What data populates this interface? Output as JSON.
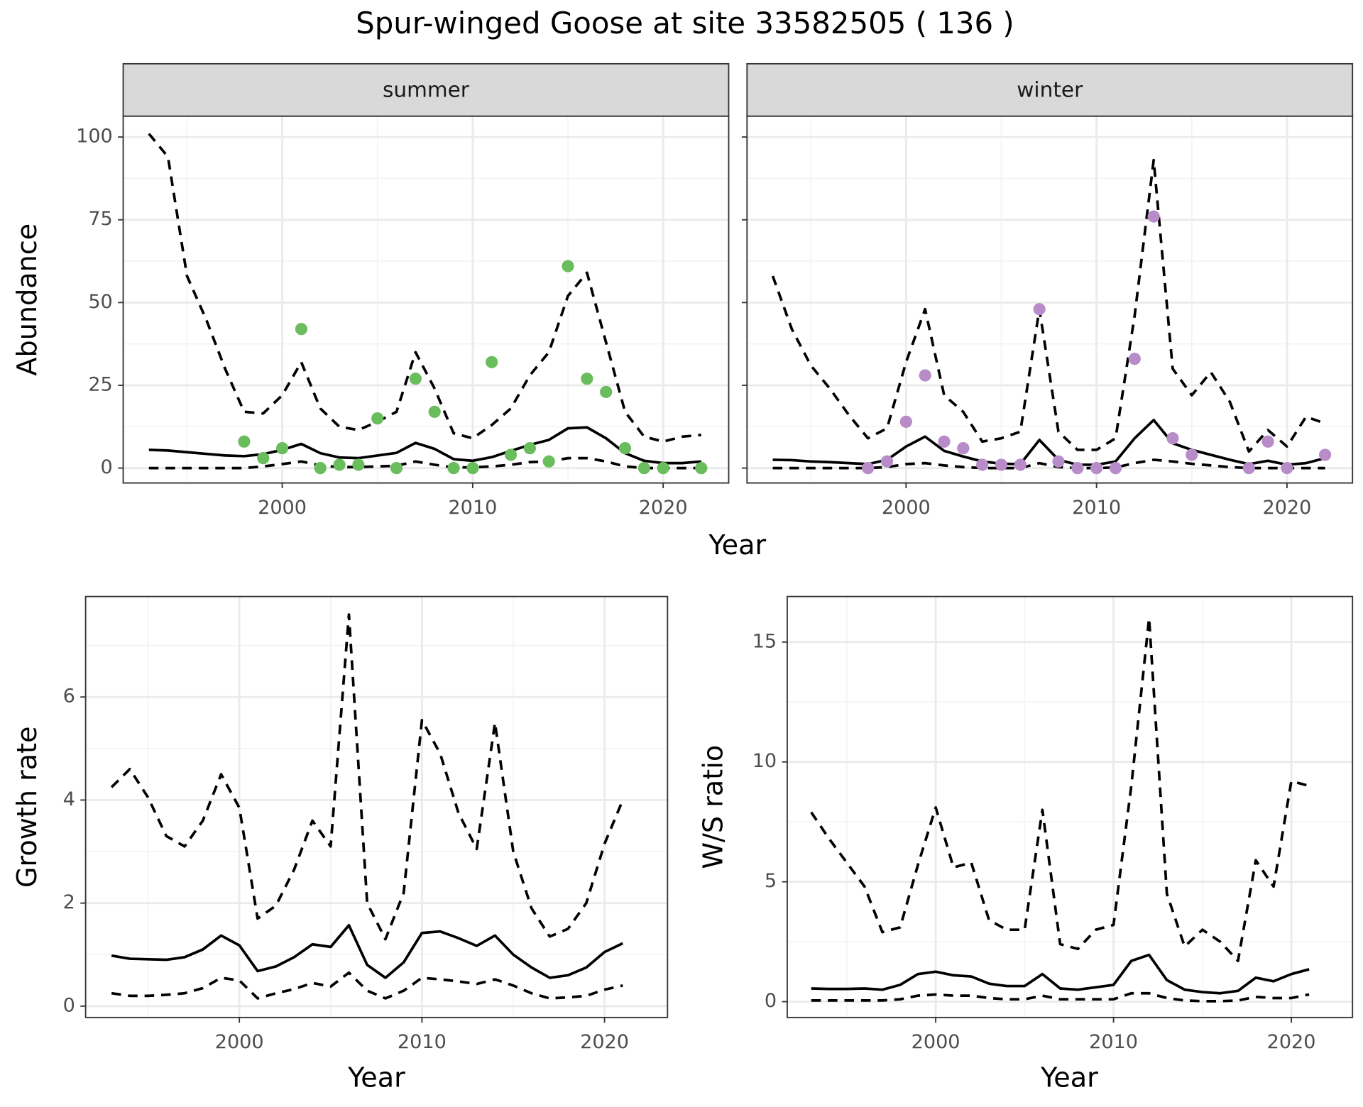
{
  "title": "Spur-winged Goose at site 33582505 ( 136 )",
  "chart_data": [
    {
      "type": "line",
      "strip": "summer",
      "ylabel": "Abundance",
      "xlabel": "Year",
      "xlim": [
        1991.65,
        2023.44
      ],
      "ylim": [
        -4.5,
        106.3
      ],
      "xticks": [
        2000,
        2010,
        2020
      ],
      "xminor": [
        1995,
        2005,
        2015
      ],
      "yticks": [
        0,
        25,
        50,
        75,
        100
      ],
      "yminor": [
        12.5,
        37.5,
        62.5,
        87.5
      ],
      "show_ytick_labels": true,
      "grid": true,
      "x": [
        1993,
        1994,
        1995,
        1996,
        1997,
        1998,
        1999,
        2000,
        2001,
        2002,
        2003,
        2004,
        2005,
        2006,
        2007,
        2008,
        2009,
        2010,
        2011,
        2012,
        2013,
        2014,
        2015,
        2016,
        2017,
        2018,
        2019,
        2020,
        2021,
        2022
      ],
      "series": [
        {
          "type": "line",
          "style": "dashed",
          "color": "#000000",
          "values": [
            101,
            94,
            58,
            45,
            30,
            17,
            16.5,
            22,
            32,
            18,
            12.5,
            11.5,
            14,
            17,
            35,
            24,
            10.5,
            9,
            13,
            18,
            28,
            35,
            52,
            59,
            38,
            17,
            9.5,
            8,
            9.5,
            10
          ]
        },
        {
          "type": "line",
          "style": "solid",
          "color": "#000000",
          "values": [
            5.5,
            5.3,
            4.8,
            4.3,
            3.8,
            3.6,
            4.2,
            5.5,
            7.3,
            4.5,
            3.2,
            3.0,
            3.8,
            4.6,
            7.6,
            5.8,
            2.7,
            2.2,
            3.3,
            5.2,
            7,
            8.5,
            12,
            12.3,
            9,
            4.5,
            2.2,
            1.5,
            1.5,
            2
          ]
        },
        {
          "type": "line",
          "style": "dashed",
          "color": "#000000",
          "values": [
            0,
            0,
            0,
            0,
            0,
            0,
            0.5,
            1.2,
            2,
            0.8,
            0.3,
            0.3,
            0.5,
            0.7,
            2,
            1,
            0.2,
            0.2,
            0.5,
            1,
            1.8,
            2,
            3,
            3,
            2,
            0.5,
            0,
            0,
            0,
            0
          ]
        },
        {
          "type": "scatter",
          "color": "#6abd5c",
          "x": [
            1998,
            1999,
            2000,
            2001,
            2002,
            2003,
            2004,
            2005,
            2006,
            2007,
            2008,
            2009,
            2010,
            2011,
            2012,
            2013,
            2014,
            2015,
            2016,
            2017,
            2018,
            2019,
            2020,
            2022
          ],
          "values": [
            8,
            3,
            6,
            42,
            0,
            1,
            1,
            15,
            0,
            27,
            17,
            0,
            0,
            32,
            4,
            6,
            2,
            61,
            27,
            23,
            6,
            0,
            0,
            0
          ]
        }
      ]
    },
    {
      "type": "line",
      "strip": "winter",
      "xlim": [
        1991.65,
        2023.44
      ],
      "ylim": [
        -4.5,
        106.3
      ],
      "xticks": [
        2000,
        2010,
        2020
      ],
      "xminor": [
        1995,
        2005,
        2015
      ],
      "yticks": [
        0,
        25,
        50,
        75,
        100
      ],
      "yminor": [
        12.5,
        37.5,
        62.5,
        87.5
      ],
      "show_ytick_labels": false,
      "grid": true,
      "x": [
        1993,
        1994,
        1995,
        1996,
        1997,
        1998,
        1999,
        2000,
        2001,
        2002,
        2003,
        2004,
        2005,
        2006,
        2007,
        2008,
        2009,
        2010,
        2011,
        2012,
        2013,
        2014,
        2015,
        2016,
        2017,
        2018,
        2019,
        2020,
        2021,
        2022
      ],
      "series": [
        {
          "type": "line",
          "style": "dashed",
          "color": "#000000",
          "values": [
            58,
            42,
            31,
            24,
            16,
            9,
            12,
            32,
            48,
            22,
            17,
            8,
            9,
            11,
            48,
            11,
            5.5,
            5.5,
            9,
            46,
            93,
            30,
            22,
            29,
            20,
            5,
            11.5,
            6.5,
            15.5,
            13.5
          ]
        },
        {
          "type": "line",
          "style": "solid",
          "color": "#000000",
          "values": [
            2.5,
            2.4,
            2,
            1.8,
            1.5,
            1.2,
            2.5,
            6.5,
            9.5,
            5.2,
            3.5,
            2,
            1.3,
            1.2,
            8.5,
            2.5,
            1,
            1,
            2,
            9,
            14.5,
            7.5,
            5.5,
            4,
            2.5,
            1.2,
            2.2,
            1,
            1.5,
            3
          ]
        },
        {
          "type": "line",
          "style": "dashed",
          "color": "#000000",
          "values": [
            0,
            0,
            0,
            0,
            0,
            0,
            0.3,
            1.2,
            1.5,
            0.8,
            0.3,
            0,
            0,
            0,
            1.5,
            0.3,
            0,
            0,
            0.2,
            1.5,
            2.5,
            2,
            1.3,
            0.8,
            0.3,
            0,
            0,
            0,
            0,
            0
          ]
        },
        {
          "type": "scatter",
          "color": "#b88bc9",
          "x": [
            1998,
            1999,
            2000,
            2001,
            2002,
            2003,
            2004,
            2005,
            2006,
            2007,
            2008,
            2009,
            2010,
            2011,
            2012,
            2013,
            2014,
            2015,
            2018,
            2019,
            2020,
            2022
          ],
          "values": [
            0,
            2,
            14,
            28,
            8,
            6,
            1,
            1,
            1,
            48,
            2,
            0,
            0,
            0,
            33,
            76,
            9,
            4,
            0,
            8,
            0,
            4
          ]
        }
      ]
    },
    {
      "type": "line",
      "ylabel": "Growth rate",
      "xlabel": "Year",
      "xlim": [
        1991.58,
        2023.45
      ],
      "ylim": [
        -0.22,
        7.95
      ],
      "xticks": [
        2000,
        2010,
        2020
      ],
      "xminor": [
        1995,
        2005,
        2015
      ],
      "yticks": [
        0,
        2,
        4,
        6
      ],
      "yminor": [
        1,
        3,
        5,
        7
      ],
      "show_ytick_labels": true,
      "grid": true,
      "x": [
        1993,
        1994,
        1995,
        1996,
        1997,
        1998,
        1999,
        2000,
        2001,
        2002,
        2003,
        2004,
        2005,
        2006,
        2007,
        2008,
        2009,
        2010,
        2011,
        2012,
        2013,
        2014,
        2015,
        2016,
        2017,
        2018,
        2019,
        2020,
        2021
      ],
      "series": [
        {
          "type": "line",
          "style": "dashed",
          "color": "#000000",
          "values": [
            4.25,
            4.6,
            4.05,
            3.3,
            3.1,
            3.6,
            4.5,
            3.85,
            1.7,
            1.95,
            2.65,
            3.6,
            3.1,
            7.6,
            2.0,
            1.3,
            2.2,
            5.55,
            4.9,
            3.75,
            3.05,
            5.5,
            3.0,
            1.9,
            1.35,
            1.5,
            2.0,
            3.15,
            4.0
          ]
        },
        {
          "type": "line",
          "style": "solid",
          "color": "#000000",
          "values": [
            0.98,
            0.92,
            0.91,
            0.9,
            0.95,
            1.1,
            1.37,
            1.18,
            0.68,
            0.77,
            0.95,
            1.2,
            1.15,
            1.57,
            0.8,
            0.55,
            0.85,
            1.42,
            1.45,
            1.32,
            1.17,
            1.37,
            1.0,
            0.75,
            0.55,
            0.6,
            0.75,
            1.05,
            1.22
          ]
        },
        {
          "type": "line",
          "style": "dashed",
          "color": "#000000",
          "values": [
            0.25,
            0.2,
            0.2,
            0.22,
            0.25,
            0.35,
            0.55,
            0.5,
            0.15,
            0.25,
            0.33,
            0.45,
            0.38,
            0.65,
            0.3,
            0.15,
            0.3,
            0.55,
            0.52,
            0.48,
            0.43,
            0.52,
            0.4,
            0.25,
            0.15,
            0.17,
            0.2,
            0.32,
            0.4
          ]
        }
      ]
    },
    {
      "type": "line",
      "ylabel": "W/S ratio",
      "xlabel": "Year",
      "xlim": [
        1991.65,
        2023.44
      ],
      "ylim": [
        -0.66,
        16.9
      ],
      "xticks": [
        2000,
        2010,
        2020
      ],
      "xminor": [
        1995,
        2005,
        2015
      ],
      "yticks": [
        0,
        5,
        10,
        15
      ],
      "yminor": [
        2.5,
        7.5,
        12.5
      ],
      "show_ytick_labels": true,
      "grid": true,
      "x": [
        1993,
        1994,
        1995,
        1996,
        1997,
        1998,
        1999,
        2000,
        2001,
        2002,
        2003,
        2004,
        2005,
        2006,
        2007,
        2008,
        2009,
        2010,
        2011,
        2012,
        2013,
        2014,
        2015,
        2016,
        2017,
        2018,
        2019,
        2020,
        2021
      ],
      "series": [
        {
          "type": "line",
          "style": "dashed",
          "color": "#000000",
          "values": [
            7.9,
            6.8,
            5.8,
            4.8,
            2.9,
            3.1,
            5.7,
            8.1,
            5.6,
            5.8,
            3.4,
            3.0,
            3.0,
            8.0,
            2.4,
            2.2,
            3.0,
            3.2,
            9.0,
            16.0,
            4.5,
            2.3,
            3.0,
            2.5,
            1.7,
            5.9,
            4.8,
            9.2,
            9.0
          ]
        },
        {
          "type": "line",
          "style": "solid",
          "color": "#000000",
          "values": [
            0.55,
            0.53,
            0.53,
            0.55,
            0.5,
            0.7,
            1.15,
            1.25,
            1.1,
            1.05,
            0.75,
            0.65,
            0.65,
            1.15,
            0.55,
            0.5,
            0.6,
            0.7,
            1.7,
            1.95,
            0.9,
            0.5,
            0.4,
            0.35,
            0.45,
            1.0,
            0.85,
            1.15,
            1.35
          ]
        },
        {
          "type": "line",
          "style": "dashed",
          "color": "#000000",
          "values": [
            0.05,
            0.05,
            0.05,
            0.05,
            0.05,
            0.1,
            0.25,
            0.3,
            0.25,
            0.25,
            0.15,
            0.1,
            0.1,
            0.25,
            0.1,
            0.1,
            0.1,
            0.1,
            0.35,
            0.35,
            0.15,
            0.05,
            0.02,
            0.02,
            0.05,
            0.2,
            0.15,
            0.15,
            0.3
          ]
        }
      ]
    }
  ]
}
